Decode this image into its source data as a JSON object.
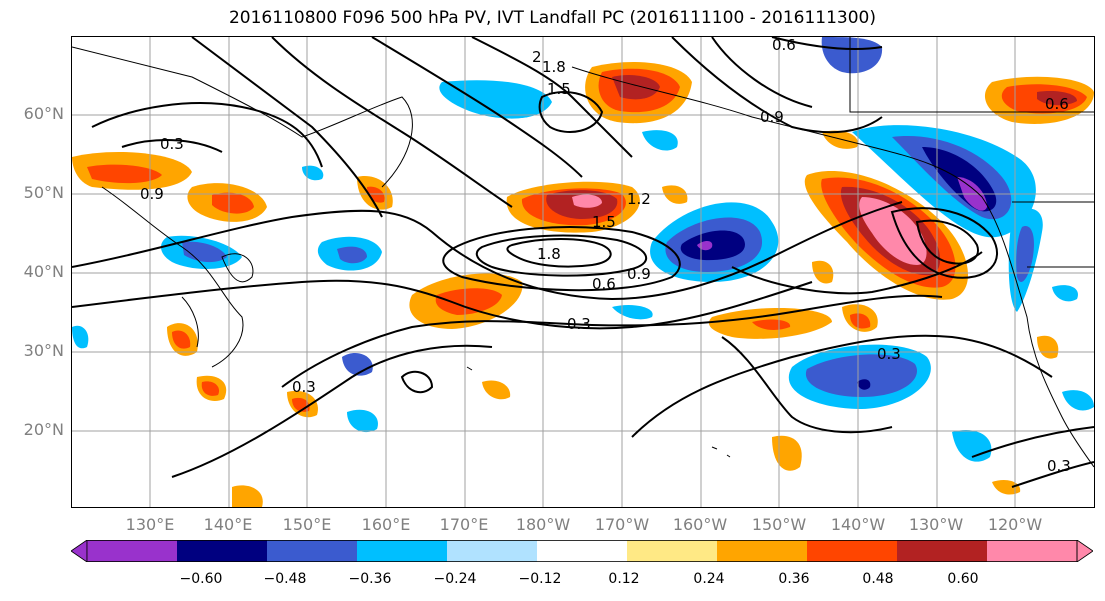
{
  "title": "2016110800 F096 500 hPa PV, IVT Landfall PC (2016111100 - 2016111300)",
  "map": {
    "lat_labels": [
      "60°N",
      "50°N",
      "40°N",
      "30°N",
      "20°N"
    ],
    "lon_labels": [
      "130°E",
      "140°E",
      "150°E",
      "160°E",
      "170°E",
      "180°W",
      "170°W",
      "160°W",
      "150°W",
      "140°W",
      "130°W",
      "120°W"
    ],
    "contour_labels": [
      "0.3",
      "0.6",
      "0.9",
      "1.2",
      "1.5",
      "1.8",
      "0.6",
      "0.9",
      "0.3",
      "0.3",
      "0.3",
      "0.9",
      "0.3",
      "1.8",
      "1.5",
      "2",
      "0.6"
    ],
    "fill_regions": [
      {
        "name": "gulf-of-alaska-positive",
        "value": 0.62
      },
      {
        "name": "se-of-kamchatka-positive",
        "value": 0.6
      },
      {
        "name": "central-north-pacific-negative",
        "value": -0.55
      },
      {
        "name": "alaska-panhandle-negative",
        "value": -0.6
      },
      {
        "name": "subtropical-east-negative",
        "value": -0.5
      },
      {
        "name": "west-pacific-positive",
        "value": 0.4
      }
    ]
  },
  "colorbar": {
    "ticks": [
      "−0.60",
      "−0.48",
      "−0.36",
      "−0.24",
      "−0.12",
      "0.12",
      "0.24",
      "0.36",
      "0.48",
      "0.60"
    ],
    "colors": [
      "#9932cc",
      "#000080",
      "#3b5bcf",
      "#00bfff",
      "#b0e2ff",
      "#ffffff",
      "#ffe985",
      "#ffa500",
      "#ff4500",
      "#b22222",
      "#ff88aa"
    ]
  }
}
